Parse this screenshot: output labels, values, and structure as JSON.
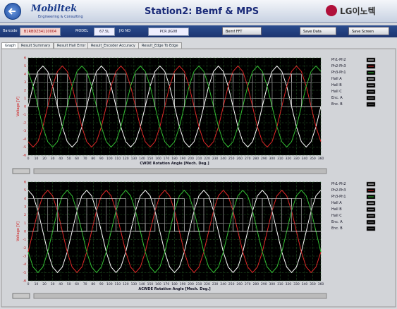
{
  "header": {
    "logo": "Mobiltek",
    "logo_sub": "Engineering & Consulting",
    "title": "Station2: Bemf & MPS",
    "brand": "LG이노텍"
  },
  "toolbar": {
    "barcode_label": "Barcode",
    "barcode": "B1RBDZ34110004",
    "model_label": "MODEL",
    "model": "67.5L",
    "jig_label": "JIG NO",
    "jig": "PCR JIG08",
    "buttons": [
      "Bemf FFT",
      "Save Data",
      "Save Screen"
    ]
  },
  "tabs": [
    "Graph",
    "Result Summary",
    "Result Hall Error",
    "Result_Encoder Accuracy",
    "Result_Edge To Edge"
  ],
  "chart_data": [
    {
      "type": "line",
      "ylabel": "Voltage [V]",
      "xlabel": "CWDE Rotation Angle [Mech. Deg.]",
      "grid": true,
      "legend": "right",
      "xlim": [
        0,
        360
      ],
      "ylim": [
        -6,
        6
      ],
      "xticks": [
        0,
        10,
        20,
        30,
        40,
        50,
        60,
        70,
        80,
        90,
        100,
        110,
        120,
        130,
        140,
        150,
        160,
        170,
        180,
        190,
        200,
        210,
        220,
        230,
        240,
        250,
        260,
        270,
        280,
        290,
        300,
        310,
        320,
        330,
        340,
        350,
        360
      ],
      "yticks": [
        6,
        5,
        4,
        3,
        2,
        1,
        0,
        -1,
        -2,
        -3,
        -4,
        -5,
        -6
      ],
      "x": [
        0,
        6,
        12,
        18,
        24,
        30,
        36,
        42,
        48,
        54,
        60,
        66,
        72,
        78,
        84,
        90,
        96,
        102,
        108,
        114,
        120,
        126,
        132,
        138,
        144,
        150,
        156,
        162,
        168,
        174,
        180,
        186,
        192,
        198,
        204,
        210,
        216,
        222,
        228,
        234,
        240,
        246,
        252,
        258,
        264,
        270,
        276,
        282,
        288,
        294,
        300,
        306,
        312,
        318,
        324,
        330,
        336,
        342,
        348,
        354,
        360
      ],
      "series": [
        {
          "name": "Ph1-Ph2",
          "color": "#ffffff",
          "values": [
            0,
            2.5,
            4.33,
            5,
            4.33,
            2.5,
            0,
            -2.5,
            -4.33,
            -5,
            -4.33,
            -2.5,
            0,
            2.5,
            4.33,
            5,
            4.33,
            2.5,
            0,
            -2.5,
            -4.33,
            -5,
            -4.33,
            -2.5,
            0,
            2.5,
            4.33,
            5,
            4.33,
            2.5,
            0,
            -2.5,
            -4.33,
            -5,
            -4.33,
            -2.5,
            0,
            2.5,
            4.33,
            5,
            4.33,
            2.5,
            0,
            -2.5,
            -4.33,
            -5,
            -4.33,
            -2.5,
            0,
            2.5,
            4.33,
            5,
            4.33,
            2.5,
            0,
            -2.5,
            -4.33,
            -5,
            -4.33,
            -2.5,
            0
          ]
        },
        {
          "name": "Ph2-Ph3",
          "color": "#e02828",
          "values": [
            -4.33,
            -5,
            -4.33,
            -2.5,
            0,
            2.5,
            4.33,
            5,
            4.33,
            2.5,
            0,
            -2.5,
            -4.33,
            -5,
            -4.33,
            -2.5,
            0,
            2.5,
            4.33,
            5,
            4.33,
            2.5,
            0,
            -2.5,
            -4.33,
            -5,
            -4.33,
            -2.5,
            0,
            2.5,
            4.33,
            5,
            4.33,
            2.5,
            0,
            -2.5,
            -4.33,
            -5,
            -4.33,
            -2.5,
            0,
            2.5,
            4.33,
            5,
            4.33,
            2.5,
            0,
            -2.5,
            -4.33,
            -5,
            -4.33,
            -2.5,
            0,
            2.5,
            4.33,
            5,
            4.33,
            2.5,
            0,
            -2.5,
            -4.33
          ]
        },
        {
          "name": "Ph3-Ph1",
          "color": "#34c034",
          "values": [
            4.33,
            2.5,
            0,
            -2.5,
            -4.33,
            -5,
            -4.33,
            -2.5,
            0,
            2.5,
            4.33,
            5,
            4.33,
            2.5,
            0,
            -2.5,
            -4.33,
            -5,
            -4.33,
            -2.5,
            0,
            2.5,
            4.33,
            5,
            4.33,
            2.5,
            0,
            -2.5,
            -4.33,
            -5,
            -4.33,
            -2.5,
            0,
            2.5,
            4.33,
            5,
            4.33,
            2.5,
            0,
            -2.5,
            -4.33,
            -5,
            -4.33,
            -2.5,
            0,
            2.5,
            4.33,
            5,
            4.33,
            2.5,
            0,
            -2.5,
            -4.33,
            -5,
            -4.33,
            -2.5,
            0,
            2.5,
            4.33,
            5,
            4.33
          ]
        },
        {
          "name": "Hall A",
          "color": "#ffffff",
          "step": true,
          "x": [
            0,
            36,
            72,
            108,
            144,
            180,
            216,
            252,
            288,
            324
          ],
          "values": [
            4,
            0,
            4,
            0,
            4,
            0,
            4,
            0,
            4,
            0
          ]
        },
        {
          "name": "Hall B",
          "color": "#d0d0d0",
          "step": true,
          "x": [
            0,
            12,
            48,
            84,
            120,
            156,
            192,
            228,
            264,
            300,
            336
          ],
          "values": [
            0,
            4,
            0,
            4,
            0,
            4,
            0,
            4,
            0,
            4,
            0
          ]
        },
        {
          "name": "Hall C",
          "color": "#a8a8a8",
          "step": true,
          "x": [
            0,
            24,
            60,
            96,
            132,
            168,
            204,
            240,
            276,
            312,
            348
          ],
          "values": [
            4,
            0,
            4,
            0,
            4,
            0,
            4,
            0,
            4,
            0,
            4
          ]
        },
        {
          "name": "Enc. A",
          "color": "#8a8a8a",
          "step": true,
          "x": [
            0,
            12,
            24,
            36,
            48,
            60,
            72,
            84,
            96,
            108,
            120,
            132,
            144,
            156,
            168,
            180,
            192,
            204,
            216,
            228,
            240,
            252,
            264,
            276,
            288,
            300,
            312,
            324,
            336,
            348
          ],
          "values": [
            3,
            1,
            3,
            1,
            3,
            1,
            3,
            1,
            3,
            1,
            3,
            1,
            3,
            1,
            3,
            1,
            3,
            1,
            3,
            1,
            3,
            1,
            3,
            1,
            3,
            1,
            3,
            1,
            3,
            1
          ]
        },
        {
          "name": "Enc. B",
          "color": "#6a6a6a",
          "step": true,
          "x": [
            0,
            12,
            24,
            36,
            48,
            60,
            72,
            84,
            96,
            108,
            120,
            132,
            144,
            156,
            168,
            180,
            192,
            204,
            216,
            228,
            240,
            252,
            264,
            276,
            288,
            300,
            312,
            324,
            336,
            348
          ],
          "values": [
            1,
            3,
            1,
            3,
            1,
            3,
            1,
            3,
            1,
            3,
            1,
            3,
            1,
            3,
            1,
            3,
            1,
            3,
            1,
            3,
            1,
            3,
            1,
            3,
            1,
            3,
            1,
            3,
            1,
            3
          ]
        }
      ]
    },
    {
      "type": "line",
      "ylabel": "Voltage [V]",
      "xlabel": "ACWDE Rotation Angle [Mech. Deg.]",
      "grid": true,
      "legend": "right",
      "xlim": [
        0,
        360
      ],
      "ylim": [
        -6,
        6
      ],
      "xticks": [
        0,
        10,
        20,
        30,
        40,
        50,
        60,
        70,
        80,
        90,
        100,
        110,
        120,
        130,
        140,
        150,
        160,
        170,
        180,
        190,
        200,
        210,
        220,
        230,
        240,
        250,
        260,
        270,
        280,
        290,
        300,
        310,
        320,
        330,
        340,
        350,
        360
      ],
      "yticks": [
        6,
        5,
        4,
        3,
        2,
        1,
        0,
        -1,
        -2,
        -3,
        -4,
        -5,
        -6
      ],
      "x": [
        0,
        6,
        12,
        18,
        24,
        30,
        36,
        42,
        48,
        54,
        60,
        66,
        72,
        78,
        84,
        90,
        96,
        102,
        108,
        114,
        120,
        126,
        132,
        138,
        144,
        150,
        156,
        162,
        168,
        174,
        180,
        186,
        192,
        198,
        204,
        210,
        216,
        222,
        228,
        234,
        240,
        246,
        252,
        258,
        264,
        270,
        276,
        282,
        288,
        294,
        300,
        306,
        312,
        318,
        324,
        330,
        336,
        342,
        348,
        354,
        360
      ],
      "series": [
        {
          "name": "Ph1-Ph2",
          "color": "#ffffff",
          "values": [
            5,
            4.33,
            2.5,
            0,
            -2.5,
            -4.33,
            -5,
            -4.33,
            -2.5,
            0,
            2.5,
            4.33,
            5,
            4.33,
            2.5,
            0,
            -2.5,
            -4.33,
            -5,
            -4.33,
            -2.5,
            0,
            2.5,
            4.33,
            5,
            4.33,
            2.5,
            0,
            -2.5,
            -4.33,
            -5,
            -4.33,
            -2.5,
            0,
            2.5,
            4.33,
            5,
            4.33,
            2.5,
            0,
            -2.5,
            -4.33,
            -5,
            -4.33,
            -2.5,
            0,
            2.5,
            4.33,
            5,
            4.33,
            2.5,
            0,
            -2.5,
            -4.33,
            -5,
            -4.33,
            -2.5,
            0,
            2.5,
            4.33,
            5
          ]
        },
        {
          "name": "Ph2-Ph3",
          "color": "#e02828",
          "values": [
            -2.5,
            0,
            2.5,
            4.33,
            5,
            4.33,
            2.5,
            0,
            -2.5,
            -4.33,
            -5,
            -4.33,
            -2.5,
            0,
            2.5,
            4.33,
            5,
            4.33,
            2.5,
            0,
            -2.5,
            -4.33,
            -5,
            -4.33,
            -2.5,
            0,
            2.5,
            4.33,
            5,
            4.33,
            2.5,
            0,
            -2.5,
            -4.33,
            -5,
            -4.33,
            -2.5,
            0,
            2.5,
            4.33,
            5,
            4.33,
            2.5,
            0,
            -2.5,
            -4.33,
            -5,
            -4.33,
            -2.5,
            0,
            2.5,
            4.33,
            5,
            4.33,
            2.5,
            0,
            -2.5,
            -4.33,
            -5,
            -4.33,
            -2.5
          ]
        },
        {
          "name": "Ph3-Ph1",
          "color": "#34c034",
          "values": [
            -2.5,
            -4.33,
            -5,
            -4.33,
            -2.5,
            0,
            2.5,
            4.33,
            5,
            4.33,
            2.5,
            0,
            -2.5,
            -4.33,
            -5,
            -4.33,
            -2.5,
            0,
            2.5,
            4.33,
            5,
            4.33,
            2.5,
            0,
            -2.5,
            -4.33,
            -5,
            -4.33,
            -2.5,
            0,
            2.5,
            4.33,
            5,
            4.33,
            2.5,
            0,
            -2.5,
            -4.33,
            -5,
            -4.33,
            -2.5,
            0,
            2.5,
            4.33,
            5,
            4.33,
            2.5,
            0,
            -2.5,
            -4.33,
            -5,
            -4.33,
            -2.5,
            0,
            2.5,
            4.33,
            5,
            4.33,
            2.5,
            0,
            -2.5
          ]
        },
        {
          "name": "Hall A",
          "color": "#ffffff",
          "step": true,
          "x": [
            0,
            36,
            72,
            108,
            144,
            180,
            216,
            252,
            288,
            324
          ],
          "values": [
            4,
            0,
            4,
            0,
            4,
            0,
            4,
            0,
            4,
            0
          ]
        },
        {
          "name": "Hall B",
          "color": "#d0d0d0",
          "step": true,
          "x": [
            0,
            12,
            48,
            84,
            120,
            156,
            192,
            228,
            264,
            300,
            336
          ],
          "values": [
            0,
            4,
            0,
            4,
            0,
            4,
            0,
            4,
            0,
            4,
            0
          ]
        },
        {
          "name": "Hall C",
          "color": "#a8a8a8",
          "step": true,
          "x": [
            0,
            24,
            60,
            96,
            132,
            168,
            204,
            240,
            276,
            312,
            348
          ],
          "values": [
            4,
            0,
            4,
            0,
            4,
            0,
            4,
            0,
            4,
            0,
            4
          ]
        },
        {
          "name": "Enc. A",
          "color": "#8a8a8a",
          "step": true,
          "x": [
            0,
            12,
            24,
            36,
            48,
            60,
            72,
            84,
            96,
            108,
            120,
            132,
            144,
            156,
            168,
            180,
            192,
            204,
            216,
            228,
            240,
            252,
            264,
            276,
            288,
            300,
            312,
            324,
            336,
            348
          ],
          "values": [
            3,
            1,
            3,
            1,
            3,
            1,
            3,
            1,
            3,
            1,
            3,
            1,
            3,
            1,
            3,
            1,
            3,
            1,
            3,
            1,
            3,
            1,
            3,
            1,
            3,
            1,
            3,
            1,
            3,
            1
          ]
        },
        {
          "name": "Enc. B",
          "color": "#6a6a6a",
          "step": true,
          "x": [
            0,
            12,
            24,
            36,
            48,
            60,
            72,
            84,
            96,
            108,
            120,
            132,
            144,
            156,
            168,
            180,
            192,
            204,
            216,
            228,
            240,
            252,
            264,
            276,
            288,
            300,
            312,
            324,
            336,
            348
          ],
          "values": [
            1,
            3,
            1,
            3,
            1,
            3,
            1,
            3,
            1,
            3,
            1,
            3,
            1,
            3,
            1,
            3,
            1,
            3,
            1,
            3,
            1,
            3,
            1,
            3,
            1,
            3,
            1,
            3,
            1,
            3
          ]
        }
      ]
    }
  ]
}
